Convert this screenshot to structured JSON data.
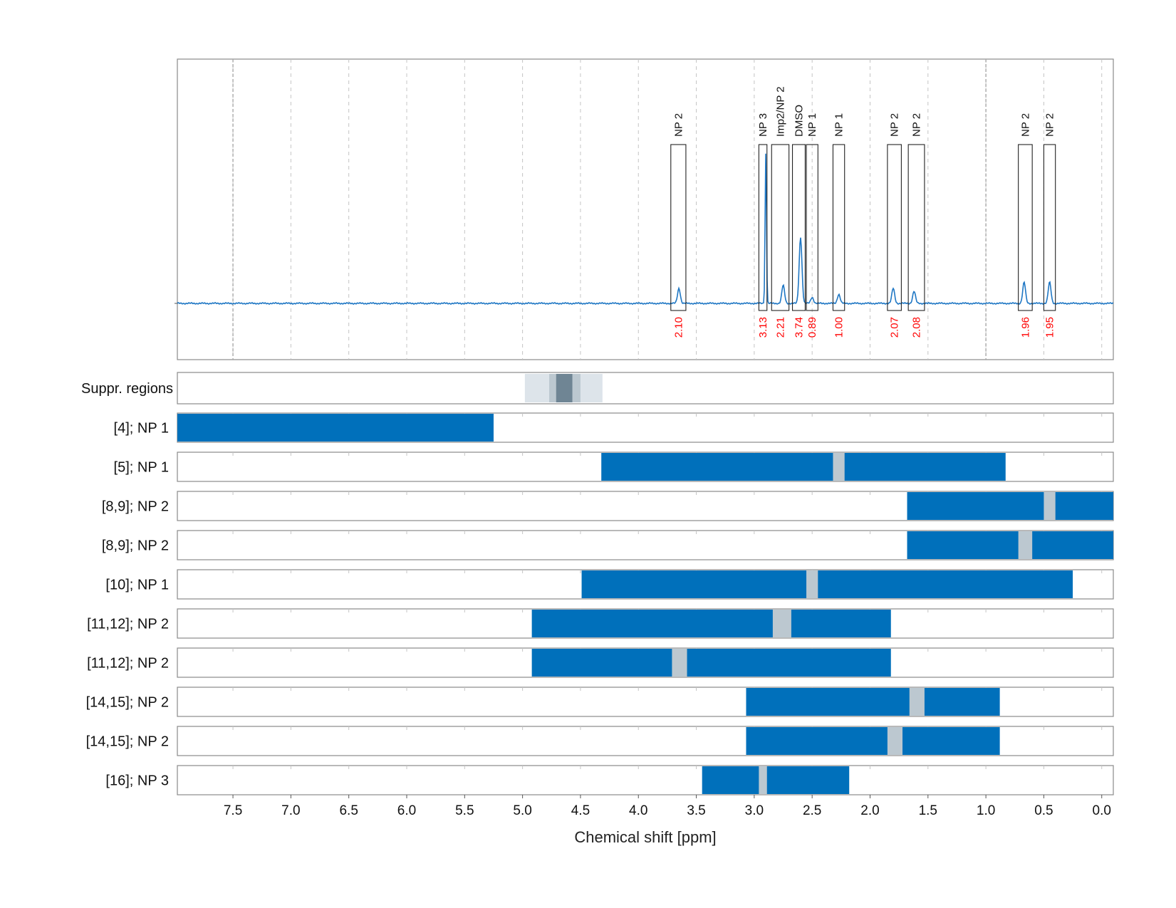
{
  "chart_data": {
    "type": "spectrum",
    "xlabel": "Chemical shift [ppm]",
    "x_axis": {
      "reversed": true,
      "min": -0.1,
      "max": 7.98,
      "ticks": [
        7.5,
        7.0,
        6.5,
        6.0,
        5.5,
        5.0,
        4.5,
        4.0,
        3.5,
        3.0,
        2.5,
        2.0,
        1.5,
        1.0,
        0.5,
        0.0
      ],
      "tick_labels": [
        "7.5",
        "7.0",
        "6.5",
        "6.0",
        "5.5",
        "5.0",
        "4.5",
        "4.0",
        "3.5",
        "3.0",
        "2.5",
        "2.0",
        "1.5",
        "1.0",
        "0.5",
        "0.0"
      ]
    },
    "grid": true,
    "colors": {
      "spectrum": "#1f77c4",
      "bar": "#0070bb",
      "gap": "#bcc8d0",
      "integral_text": "#ff0000",
      "suppr_light": "#dde4ea",
      "suppr_mid": "#bcc8d0",
      "suppr_dark": "#6f8594"
    },
    "spectrum_peaks": [
      {
        "ppm": 3.65,
        "height": 0.1
      },
      {
        "ppm": 2.9,
        "height": 1.0
      },
      {
        "ppm": 2.75,
        "height": 0.12
      },
      {
        "ppm": 2.6,
        "height": 0.44
      },
      {
        "ppm": 2.5,
        "height": 0.04
      },
      {
        "ppm": 2.27,
        "height": 0.06
      },
      {
        "ppm": 1.8,
        "height": 0.1
      },
      {
        "ppm": 1.62,
        "height": 0.08
      },
      {
        "ppm": 0.67,
        "height": 0.14
      },
      {
        "ppm": 0.45,
        "height": 0.14
      }
    ],
    "peak_regions": [
      {
        "label": "NP 2",
        "from": 3.72,
        "to": 3.59,
        "integral": "2.10"
      },
      {
        "label": "NP 3",
        "from": 2.96,
        "to": 2.89,
        "integral": "3.13"
      },
      {
        "label": "Imp2/NP 2",
        "from": 2.85,
        "to": 2.7,
        "integral": "2.21"
      },
      {
        "label": "DMSO",
        "from": 2.67,
        "to": 2.56,
        "integral": "3.74"
      },
      {
        "label": "NP 1",
        "from": 2.55,
        "to": 2.45,
        "integral": "0.89"
      },
      {
        "label": "NP 1",
        "from": 2.32,
        "to": 2.22,
        "integral": "1.00"
      },
      {
        "label": "NP 2",
        "from": 1.85,
        "to": 1.73,
        "integral": "2.07"
      },
      {
        "label": "NP 2",
        "from": 1.67,
        "to": 1.53,
        "integral": "2.08"
      },
      {
        "label": "NP 2",
        "from": 0.72,
        "to": 0.6,
        "integral": "1.96"
      },
      {
        "label": "NP 2",
        "from": 0.5,
        "to": 0.4,
        "integral": "1.95"
      }
    ],
    "suppression_regions": {
      "label": "Suppr. regions",
      "bands": [
        {
          "from": 4.98,
          "to": 4.31,
          "shade": "light"
        },
        {
          "from": 4.77,
          "to": 4.5,
          "shade": "mid"
        },
        {
          "from": 4.71,
          "to": 4.57,
          "shade": "dark"
        }
      ]
    },
    "assignment_tracks": [
      {
        "label": "[4]; NP 1",
        "from": 7.98,
        "to": 5.25,
        "gap": null
      },
      {
        "label": "[5]; NP 1",
        "from": 4.32,
        "to": 0.83,
        "gap": [
          2.32,
          2.22
        ]
      },
      {
        "label": "[8,9]; NP 2",
        "from": 1.68,
        "to": -0.1,
        "gap": [
          0.5,
          0.4
        ]
      },
      {
        "label": "[8,9]; NP 2",
        "from": 1.68,
        "to": -0.1,
        "gap": [
          0.72,
          0.6
        ]
      },
      {
        "label": "[10]; NP 1",
        "from": 4.49,
        "to": 0.25,
        "gap": [
          2.55,
          2.45
        ]
      },
      {
        "label": "[11,12]; NP 2",
        "from": 4.92,
        "to": 1.82,
        "gap": [
          2.84,
          2.68
        ]
      },
      {
        "label": "[11,12]; NP 2",
        "from": 4.92,
        "to": 1.82,
        "gap": [
          3.71,
          3.58
        ]
      },
      {
        "label": "[14,15]; NP 2",
        "from": 3.07,
        "to": 0.88,
        "gap": [
          1.66,
          1.53
        ]
      },
      {
        "label": "[14,15]; NP 2",
        "from": 3.07,
        "to": 0.88,
        "gap": [
          1.85,
          1.72
        ]
      },
      {
        "label": "[16]; NP 3",
        "from": 3.45,
        "to": 2.18,
        "gap": [
          2.96,
          2.89
        ]
      }
    ]
  }
}
